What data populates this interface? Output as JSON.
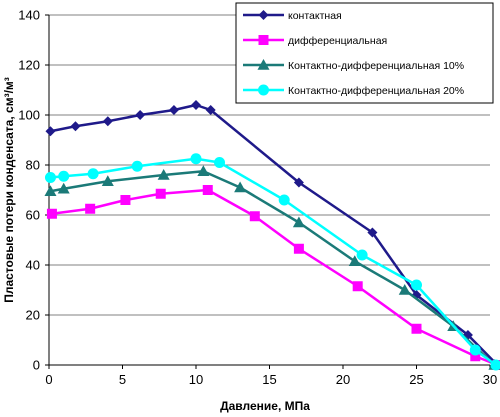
{
  "chart_data": {
    "type": "line",
    "xlabel": "Давление, МПа",
    "ylabel": "Пластовые потери конденсата, см³/м³",
    "xlim": [
      0,
      30
    ],
    "ylim": [
      0,
      140
    ],
    "xticks": [
      "0",
      "5",
      "10",
      "15",
      "20",
      "25",
      "30"
    ],
    "yticks": [
      "0",
      "20",
      "40",
      "60",
      "80",
      "100",
      "120",
      "140"
    ],
    "grid": "horizontal",
    "legend_position": "top-right",
    "series": [
      {
        "name": "контактная",
        "color": "#1f1a8a",
        "marker": "diamond",
        "x": [
          0.1,
          1.8,
          4.0,
          6.2,
          8.5,
          10.0,
          11.0,
          17.0,
          22.0,
          25.0,
          28.5,
          30.5
        ],
        "y": [
          93.5,
          95.5,
          97.5,
          100,
          102,
          104,
          102,
          73,
          53,
          28,
          12,
          0
        ]
      },
      {
        "name": "дифференциальная",
        "color": "#ff00ff",
        "marker": "square",
        "x": [
          0.2,
          2.8,
          5.2,
          7.6,
          10.8,
          14.0,
          17.0,
          21.0,
          25.0,
          29.0,
          30.5
        ],
        "y": [
          60.5,
          62.5,
          66,
          68.5,
          70,
          59.5,
          46.5,
          31.5,
          14.5,
          3.5,
          0
        ]
      },
      {
        "name": "Контактно-дифференциальная  10%",
        "color": "#1b7a78",
        "marker": "triangle",
        "x": [
          0.1,
          1.0,
          4.0,
          7.8,
          10.5,
          13.0,
          17.0,
          20.8,
          24.2,
          27.5,
          30.3
        ],
        "y": [
          69.5,
          70.5,
          73.5,
          76,
          77.5,
          71,
          57,
          41.5,
          30,
          15.5,
          0
        ]
      },
      {
        "name": "Контактно-дифференциальная  20%",
        "color": "#00ffff",
        "marker": "circle",
        "x": [
          0.1,
          1.0,
          3.0,
          6.0,
          10.0,
          11.6,
          16.0,
          21.3,
          25.0,
          29.0,
          30.4
        ],
        "y": [
          75,
          75.5,
          76.5,
          79.5,
          82.5,
          81,
          66,
          44,
          32,
          6,
          0
        ]
      }
    ]
  }
}
